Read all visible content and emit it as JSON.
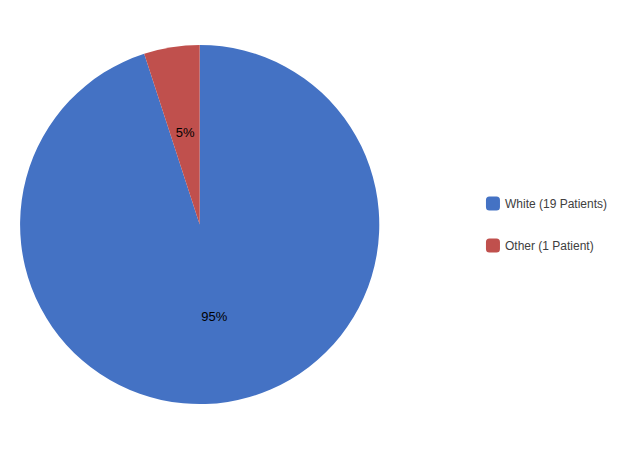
{
  "chart_data": {
    "type": "pie",
    "categories": [
      "White (19 Patients)",
      "Other (1 Patient)"
    ],
    "values": [
      95,
      5
    ],
    "value_labels": [
      "95%",
      "5%"
    ],
    "colors": [
      "#4472C4",
      "#C0504D"
    ],
    "data_labels": true,
    "legend": "right"
  }
}
